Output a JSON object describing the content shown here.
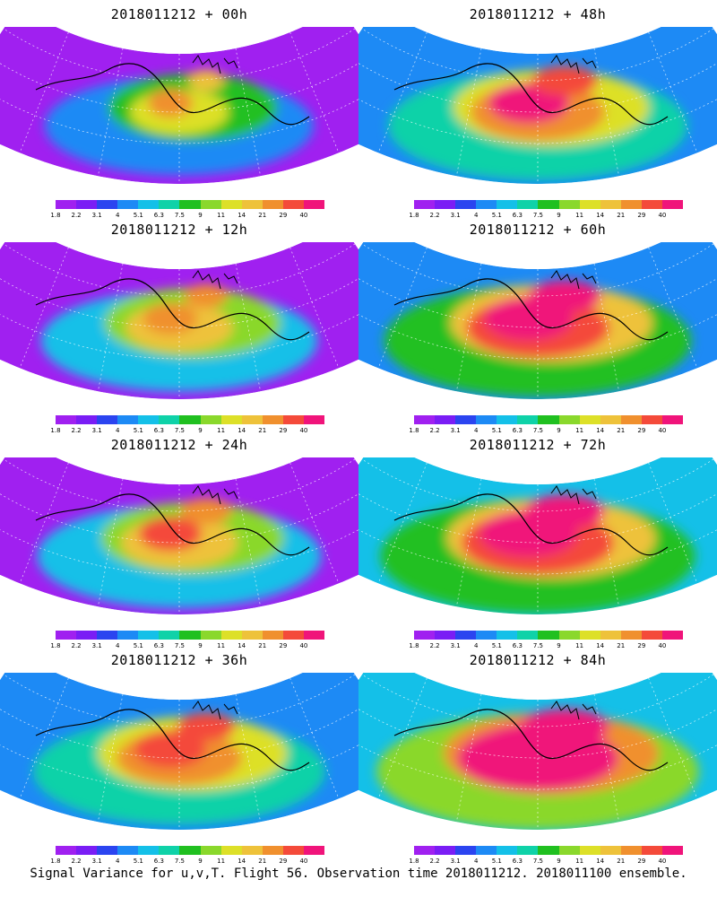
{
  "panels": [
    {
      "title": "2018011212 + 00h",
      "level": 0
    },
    {
      "title": "2018011212 + 48h",
      "level": 4
    },
    {
      "title": "2018011212 + 12h",
      "level": 1
    },
    {
      "title": "2018011212 + 60h",
      "level": 5
    },
    {
      "title": "2018011212 + 24h",
      "level": 2
    },
    {
      "title": "2018011212 + 72h",
      "level": 6
    },
    {
      "title": "2018011212 + 36h",
      "level": 3
    },
    {
      "title": "2018011212 + 84h",
      "level": 7
    }
  ],
  "colorbar": {
    "labels": [
      "1.8",
      "2.2",
      "3.1",
      "4",
      "5.1",
      "6.3",
      "7.5",
      "9",
      "11",
      "14",
      "21",
      "29",
      "40"
    ],
    "colors": [
      "#a020f0",
      "#7a1df5",
      "#2b44f0",
      "#1d8af5",
      "#14c0e8",
      "#0fd2a8",
      "#20c020",
      "#8ad82c",
      "#dde028",
      "#eec23a",
      "#f0902e",
      "#f44a3a",
      "#f0147a"
    ]
  },
  "footer": "Signal Variance for u,v,T. Flight 56. Observation time 2018011212. 2018011100 ensemble."
}
